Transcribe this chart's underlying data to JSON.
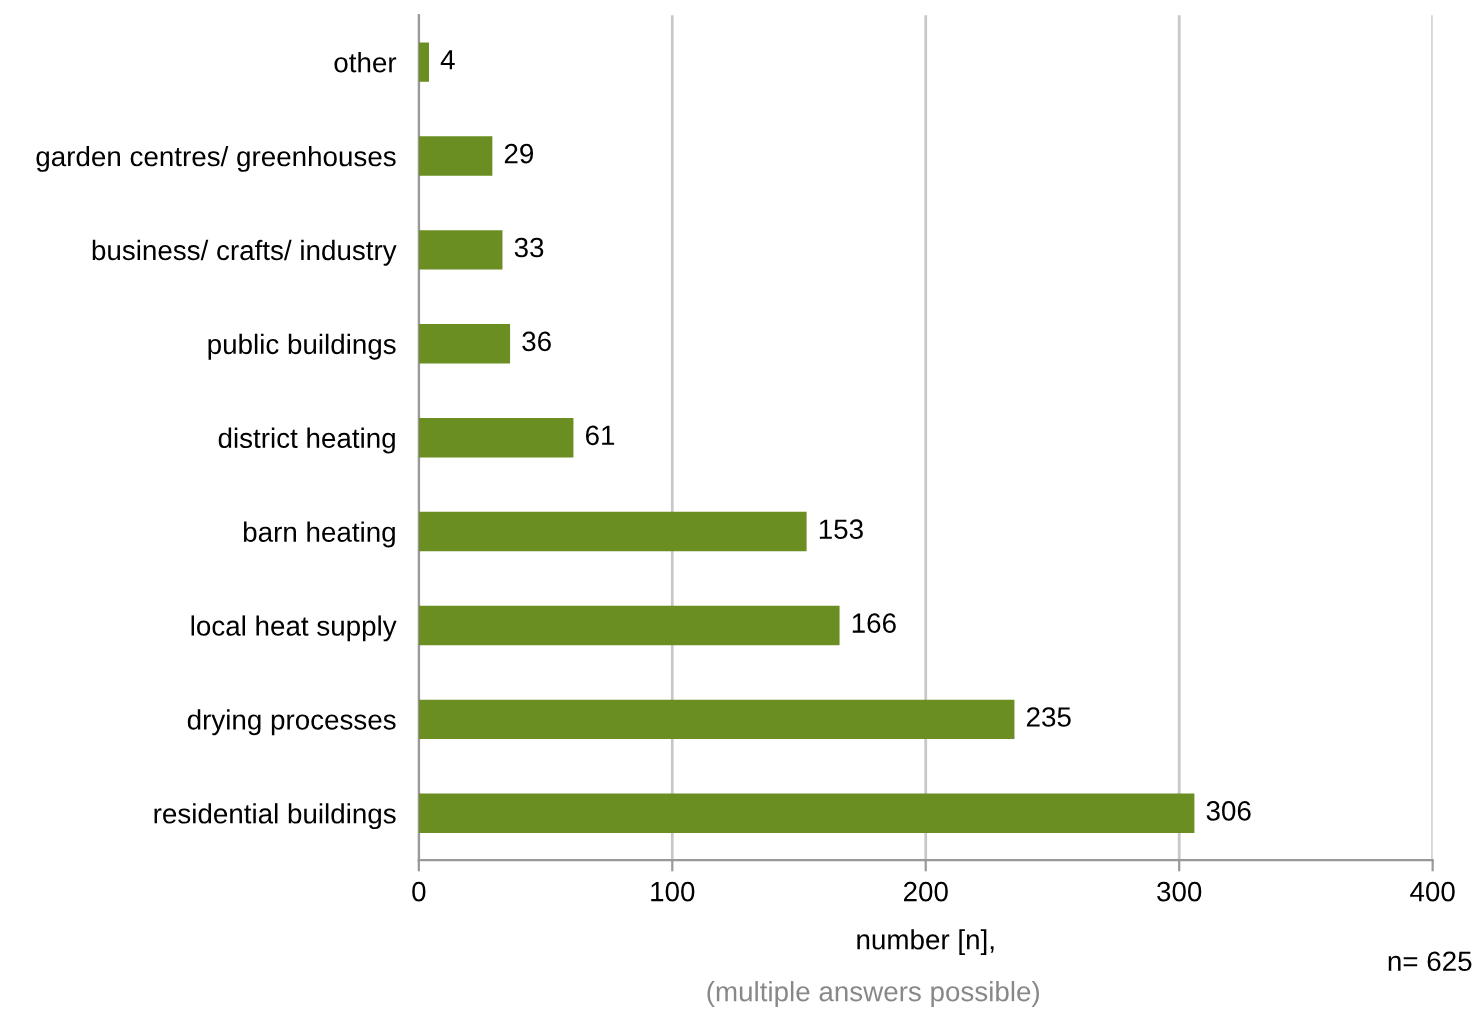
{
  "chart_data": {
    "type": "bar",
    "orientation": "horizontal",
    "categories": [
      "other",
      "garden centres/ greenhouses",
      "business/ crafts/ industry",
      "public buildings",
      "district heating",
      "barn heating",
      "local heat supply",
      "drying processes",
      "residential buildings"
    ],
    "values": [
      4,
      29,
      33,
      36,
      61,
      153,
      166,
      235,
      306
    ],
    "color": "#6b8e23",
    "xlim": [
      0,
      400
    ],
    "xticks": [
      0,
      100,
      200,
      300,
      400
    ],
    "grid": "x",
    "data_labels": true,
    "xlabel": "number [n],",
    "annotations": [
      "(multiple answers possible)",
      "n= 625"
    ]
  }
}
